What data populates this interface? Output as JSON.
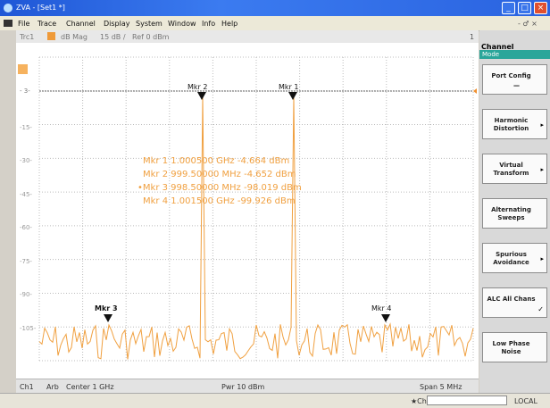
{
  "window": {
    "title": "ZVA - [Set1 *]",
    "btn_min": "_",
    "btn_max": "□",
    "btn_close": "×"
  },
  "menu": {
    "items": [
      "File",
      "Trace",
      "Channel",
      "Display",
      "System",
      "Window",
      "Info",
      "Help"
    ],
    "right_controls": "- ♂ ×"
  },
  "trace_bar": {
    "trace": "Trc1",
    "format": "dB Mag",
    "scale": "15 dB /",
    "ref": "Ref 0 dBm",
    "number": "1"
  },
  "plot": {
    "ref_label": "- 3-",
    "y_labels": [
      "-15-",
      "-30-",
      "-45-",
      "-60-",
      "-75-",
      "-90-",
      "-105-"
    ],
    "markers": [
      {
        "label": "Mkr 2"
      },
      {
        "label": "Mkr 1"
      },
      {
        "label": "Mkr 3"
      },
      {
        "label": "Mkr 4"
      }
    ],
    "marker_info": [
      "Mkr 1   1.000500 GHz  -4.664 dBm",
      "Mkr 2 999.50000 MHz  -4.652 dBm",
      "•Mkr 3 998.50000 MHz -98.019 dBm",
      "Mkr 4   1.001500 GHz -99.926 dBm"
    ],
    "trace_color": "#f0a040"
  },
  "status": {
    "channel": "Ch1",
    "mode": "Arb",
    "center": "Center  1 GHz",
    "power": "Pwr  10 dBm",
    "span": "Span  5 MHz"
  },
  "bottom": {
    "indicator": "★Ch1:",
    "field_value": "",
    "local": "LOCAL"
  },
  "softkeys": {
    "header": "Channel",
    "mode": "Mode",
    "buttons": [
      {
        "label": "Port Config",
        "extra": "—"
      },
      {
        "label": "Harmonic Distortion",
        "extra": "▸"
      },
      {
        "label": "Virtual Transform",
        "extra": "▸"
      },
      {
        "label": "Alternating Sweeps",
        "extra": ""
      },
      {
        "label": "Spurious Avoidance",
        "extra": "▸"
      },
      {
        "label": "ALC All Chans",
        "extra": "✓"
      },
      {
        "label": "Low Phase Noise",
        "extra": ""
      }
    ]
  }
}
